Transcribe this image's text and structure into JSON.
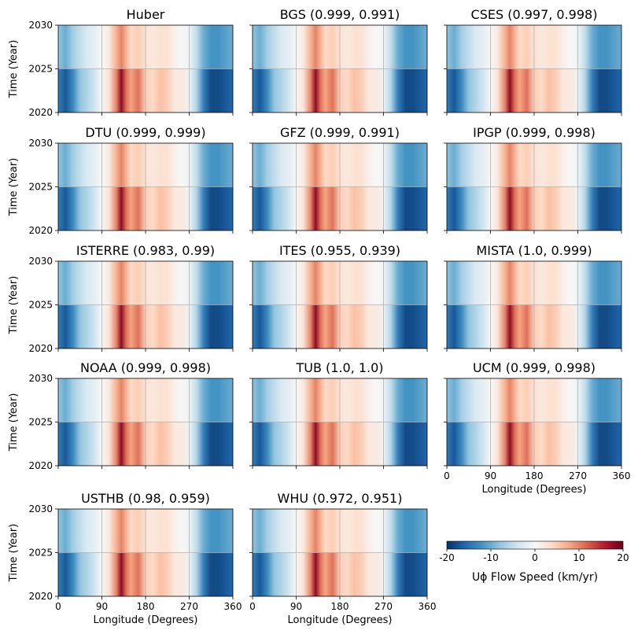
{
  "chart_data": {
    "type": "heatmap",
    "layout": "5x3 grid of heatmaps, last row has two panels plus a colorbar",
    "x_axis": {
      "label": "Longitude (Degrees)",
      "ticks": [
        "0",
        "90",
        "180",
        "270",
        "360"
      ],
      "range": [
        0,
        360
      ]
    },
    "y_axis": {
      "label": "Time (Year)",
      "ticks": [
        "2020",
        "2025",
        "2030"
      ],
      "range": [
        2020,
        2030
      ]
    },
    "grid": true,
    "colormap": "RdBu_r",
    "colorbar": {
      "label": "Uϕ Flow Speed (km/yr)",
      "ticks": [
        "-20",
        "-10",
        "0",
        "10",
        "20"
      ],
      "range": [
        -20,
        20
      ],
      "placement": "bottom-right"
    },
    "panels": [
      {
        "title": "Huber"
      },
      {
        "title": "BGS (0.999, 0.991)"
      },
      {
        "title": "CSES (0.997, 0.998)"
      },
      {
        "title": "DTU (0.999, 0.999)"
      },
      {
        "title": "GFZ (0.999, 0.991)"
      },
      {
        "title": "IPGP (0.999, 0.998)"
      },
      {
        "title": "ISTERRE (0.983, 0.99)"
      },
      {
        "title": "ITES (0.955, 0.939)"
      },
      {
        "title": "MISTA (1.0, 0.999)"
      },
      {
        "title": "NOAA (0.999, 0.998)"
      },
      {
        "title": "TUB (1.0, 1.0)"
      },
      {
        "title": "UCM (0.999, 0.998)"
      },
      {
        "title": "USTHB (0.98, 0.959)"
      },
      {
        "title": "WHU (0.972, 0.951)"
      }
    ],
    "longitude_profile_km_per_yr": {
      "longitude": [
        0,
        15,
        30,
        45,
        60,
        75,
        90,
        105,
        120,
        130,
        140,
        150,
        165,
        180,
        195,
        210,
        225,
        240,
        255,
        270,
        285,
        300,
        315,
        330,
        345,
        360
      ],
      "early_2020_2025": [
        -14,
        -17,
        -13,
        -8,
        -6,
        -4,
        0,
        3,
        10,
        18,
        11,
        8,
        11,
        5,
        4,
        6,
        5,
        2,
        2,
        -1,
        -6,
        -14,
        -18,
        -18,
        -17,
        -16
      ],
      "late_2025_2030": [
        -8,
        -10,
        -7,
        -5,
        -3,
        -2,
        0,
        2,
        7,
        10,
        7,
        4,
        5,
        3,
        2,
        3,
        3,
        1,
        0,
        -1,
        -5,
        -10,
        -12,
        -12,
        -11,
        -10
      ]
    }
  }
}
